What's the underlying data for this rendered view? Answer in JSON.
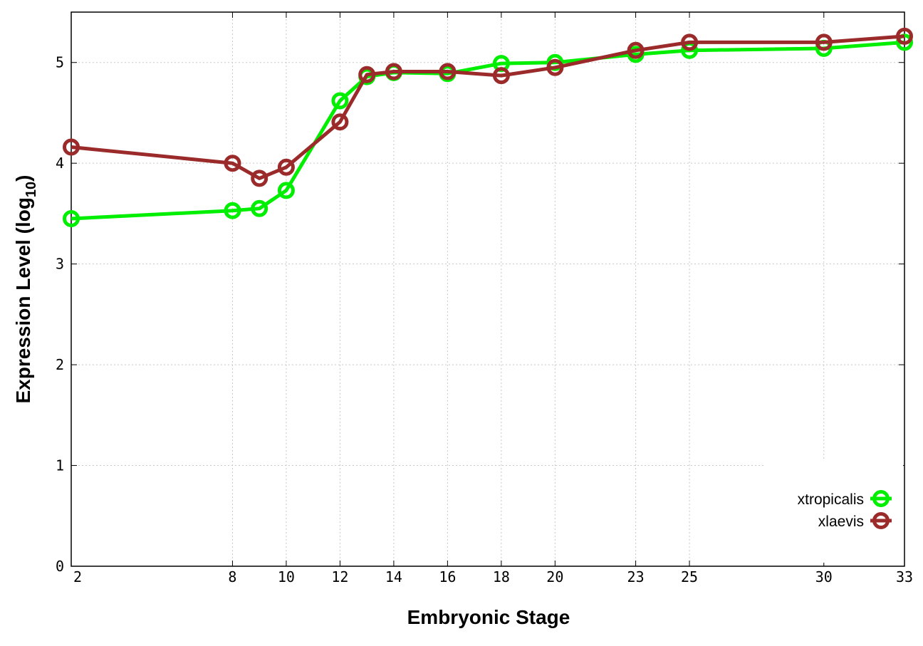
{
  "chart_data": {
    "type": "line",
    "xlabel": "Embryonic Stage",
    "ylabel_main": "Expression Level (log",
    "ylabel_sub": "10",
    "ylabel_close": ")",
    "xlim": [
      2,
      33
    ],
    "ylim": [
      0,
      5.5
    ],
    "grid": true,
    "legend_position": "bottom-right",
    "xticks": [
      2,
      8,
      10,
      12,
      14,
      16,
      18,
      20,
      23,
      25,
      30,
      33
    ],
    "xtick_labels": [
      "2",
      "8",
      "10",
      "12",
      "14",
      "16",
      "18",
      "20",
      "23",
      "25",
      "30",
      "33"
    ],
    "yticks": [
      0,
      1,
      2,
      3,
      4,
      5
    ],
    "ytick_labels": [
      "0",
      "1",
      "2",
      "3",
      "4",
      "5"
    ],
    "x": [
      2,
      8,
      9,
      10,
      12,
      13,
      14,
      16,
      18,
      20,
      23,
      25,
      30,
      33
    ],
    "series": [
      {
        "name": "xtropicalis",
        "color": "#00ee00",
        "values": [
          3.45,
          3.53,
          3.55,
          3.73,
          4.62,
          4.86,
          4.9,
          4.89,
          4.99,
          5.0,
          5.08,
          5.12,
          5.14,
          5.2
        ]
      },
      {
        "name": "xlaevis",
        "color": "#9b2a2a",
        "values": [
          4.16,
          4.0,
          3.85,
          3.96,
          4.41,
          4.88,
          4.91,
          4.91,
          4.87,
          4.95,
          5.12,
          5.2,
          5.2,
          5.26
        ]
      }
    ]
  }
}
